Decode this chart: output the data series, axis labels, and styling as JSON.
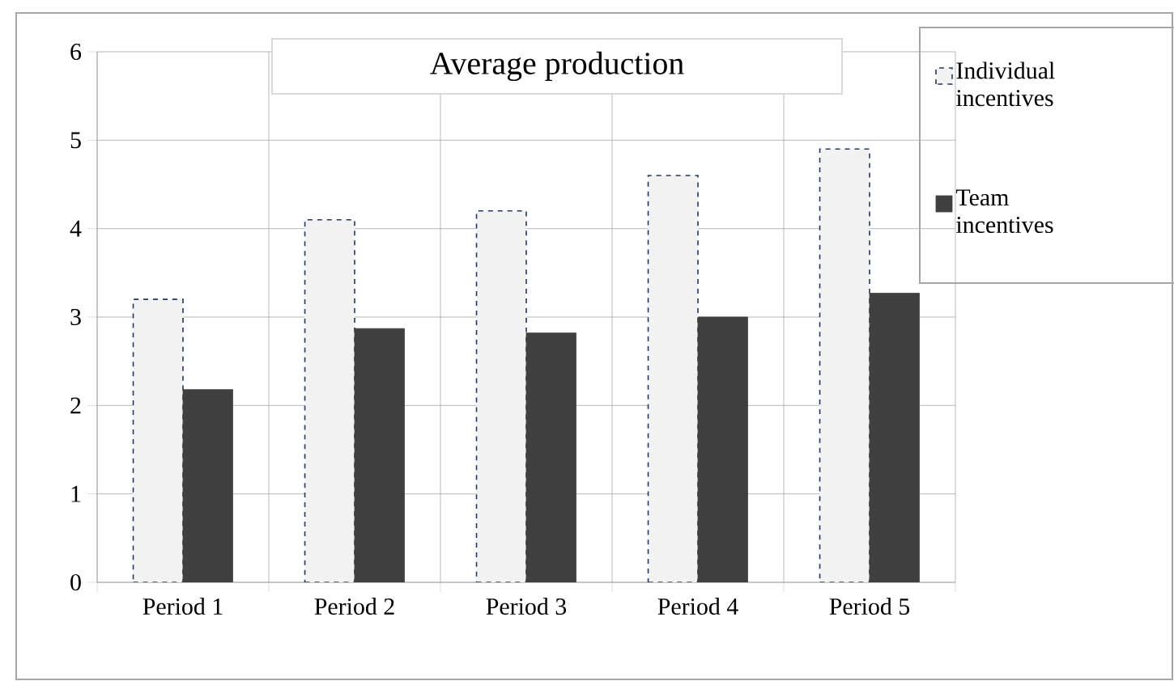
{
  "chart_data": {
    "type": "bar",
    "title": "Average production",
    "categories": [
      "Period 1",
      "Period 2",
      "Period 3",
      "Period 4",
      "Period 5"
    ],
    "series": [
      {
        "name": "Individual incentives",
        "color": "#f2f2f2",
        "values": [
          3.2,
          4.1,
          4.2,
          4.6,
          4.9
        ]
      },
      {
        "name": "Team incentives",
        "color": "#404040",
        "values": [
          2.18,
          2.87,
          2.82,
          3.0,
          3.27
        ]
      }
    ],
    "ylim": [
      0,
      6
    ],
    "yticks": [
      0,
      1,
      2,
      3,
      4,
      5,
      6
    ],
    "grid": true,
    "legend": "top right"
  }
}
